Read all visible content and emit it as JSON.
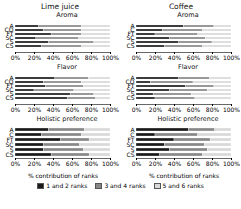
{
  "chart_data": [
    {
      "type": "bar",
      "orientation": "horizontal",
      "stacked": true,
      "title": "Lime juice",
      "subtitle": "Aroma",
      "categories": [
        "CS",
        "S",
        "SC",
        "FT",
        "CO",
        "A"
      ],
      "series": [
        {
          "name": "1 and 2 ranks",
          "color": "#1a1a1a",
          "values": [
            28,
            35,
            22,
            38,
            30,
            25
          ]
        },
        {
          "name": "3 and 4 ranks",
          "color": "#888888",
          "values": [
            42,
            48,
            45,
            32,
            40,
            45
          ]
        },
        {
          "name": "5 and 6 ranks",
          "color": "#d9d9d9",
          "values": [
            30,
            17,
            33,
            30,
            30,
            30
          ]
        }
      ],
      "xlim": [
        0,
        100
      ],
      "xticks": [
        {
          "value": 0,
          "label": "0%"
        },
        {
          "value": 20,
          "label": "20%"
        },
        {
          "value": 40,
          "label": "40%"
        },
        {
          "value": 60,
          "label": "60%"
        },
        {
          "value": 80,
          "label": "80%"
        },
        {
          "value": 100,
          "label": "100%"
        }
      ]
    },
    {
      "type": "bar",
      "orientation": "horizontal",
      "stacked": true,
      "title": "Coffee",
      "subtitle": "Aroma",
      "categories": [
        "CS",
        "S",
        "SC",
        "FT",
        "C",
        "A"
      ],
      "series": [
        {
          "name": "1 and 2 ranks",
          "color": "#1a1a1a",
          "values": [
            30,
            45,
            35,
            20,
            28,
            50
          ]
        },
        {
          "name": "3 and 4 ranks",
          "color": "#888888",
          "values": [
            40,
            35,
            38,
            45,
            42,
            32
          ]
        },
        {
          "name": "5 and 6 ranks",
          "color": "#d9d9d9",
          "values": [
            30,
            20,
            27,
            35,
            30,
            18
          ]
        }
      ],
      "xlim": [
        0,
        100
      ],
      "xticks": [
        {
          "value": 0,
          "label": "0%"
        },
        {
          "value": 20,
          "label": "20%"
        },
        {
          "value": 40,
          "label": "40%"
        },
        {
          "value": 60,
          "label": "60%"
        },
        {
          "value": 80,
          "label": "80%"
        },
        {
          "value": 100,
          "label": "100%"
        }
      ]
    },
    {
      "type": "bar",
      "orientation": "horizontal",
      "stacked": true,
      "title": "Flavor",
      "categories": [
        "CS",
        "S",
        "SC",
        "FT",
        "CO",
        "A"
      ],
      "series": [
        {
          "name": "1 and 2 ranks",
          "color": "#1a1a1a",
          "values": [
            55,
            58,
            20,
            32,
            30,
            42
          ]
        },
        {
          "name": "3 and 4 ranks",
          "color": "#888888",
          "values": [
            30,
            25,
            42,
            40,
            40,
            35
          ]
        },
        {
          "name": "5 and 6 ranks",
          "color": "#d9d9d9",
          "values": [
            15,
            17,
            38,
            28,
            30,
            23
          ]
        }
      ],
      "xlim": [
        0,
        100
      ],
      "xticks": [
        {
          "value": 0,
          "label": "0%"
        },
        {
          "value": 20,
          "label": "20%"
        },
        {
          "value": 40,
          "label": "40%"
        },
        {
          "value": 60,
          "label": "60%"
        },
        {
          "value": 80,
          "label": "80%"
        },
        {
          "value": 100,
          "label": "100%"
        }
      ]
    },
    {
      "type": "bar",
      "orientation": "horizontal",
      "stacked": true,
      "title": "Flavor",
      "categories": [
        "CS",
        "S",
        "SC",
        "FT",
        "CO",
        "A"
      ],
      "series": [
        {
          "name": "1 and 2 ranks",
          "color": "#1a1a1a",
          "values": [
            20,
            18,
            35,
            52,
            15,
            45
          ]
        },
        {
          "name": "3 and 4 ranks",
          "color": "#888888",
          "values": [
            42,
            40,
            40,
            30,
            45,
            32
          ]
        },
        {
          "name": "5 and 6 ranks",
          "color": "#d9d9d9",
          "values": [
            38,
            42,
            25,
            18,
            40,
            23
          ]
        }
      ],
      "xlim": [
        0,
        100
      ],
      "xticks": [
        {
          "value": 0,
          "label": "0%"
        },
        {
          "value": 20,
          "label": "20%"
        },
        {
          "value": 40,
          "label": "40%"
        },
        {
          "value": 60,
          "label": "60%"
        },
        {
          "value": 80,
          "label": "80%"
        },
        {
          "value": 100,
          "label": "100%"
        }
      ]
    },
    {
      "type": "bar",
      "orientation": "horizontal",
      "stacked": true,
      "title": "Holistic preference",
      "categories": [
        "CS",
        "S",
        "SC",
        "FT",
        "C",
        "A"
      ],
      "series": [
        {
          "name": "1 and 2 ranks",
          "color": "#1a1a1a",
          "values": [
            38,
            30,
            30,
            48,
            28,
            35
          ]
        },
        {
          "name": "3 and 4 ranks",
          "color": "#888888",
          "values": [
            40,
            42,
            38,
            30,
            42,
            38
          ]
        },
        {
          "name": "5 and 6 ranks",
          "color": "#d9d9d9",
          "values": [
            22,
            28,
            32,
            22,
            30,
            27
          ]
        }
      ],
      "xlim": [
        0,
        100
      ],
      "xticks": [
        {
          "value": 0,
          "label": "0%"
        },
        {
          "value": 20,
          "label": "20%"
        },
        {
          "value": 40,
          "label": "40%"
        },
        {
          "value": 60,
          "label": "60%"
        },
        {
          "value": 80,
          "label": "80%"
        },
        {
          "value": 100,
          "label": "100%"
        }
      ],
      "xlabel": "% contribution of ranks"
    },
    {
      "type": "bar",
      "orientation": "horizontal",
      "stacked": true,
      "title": "Holistic preference",
      "categories": [
        "CS",
        "S",
        "SC",
        "FT",
        "C",
        "A"
      ],
      "series": [
        {
          "name": "1 and 2 ranks",
          "color": "#1a1a1a",
          "values": [
            25,
            35,
            30,
            40,
            20,
            55
          ]
        },
        {
          "name": "3 and 4 ranks",
          "color": "#888888",
          "values": [
            45,
            40,
            42,
            38,
            45,
            28
          ]
        },
        {
          "name": "5 and 6 ranks",
          "color": "#d9d9d9",
          "values": [
            30,
            25,
            28,
            22,
            35,
            17
          ]
        }
      ],
      "xlim": [
        0,
        100
      ],
      "xticks": [
        {
          "value": 0,
          "label": "0%"
        },
        {
          "value": 20,
          "label": "20%"
        },
        {
          "value": 40,
          "label": "40%"
        },
        {
          "value": 60,
          "label": "60%"
        },
        {
          "value": 80,
          "label": "80%"
        },
        {
          "value": 100,
          "label": "100%"
        }
      ],
      "xlabel": "% contribution of ranks",
      "legend": "bottom"
    }
  ]
}
